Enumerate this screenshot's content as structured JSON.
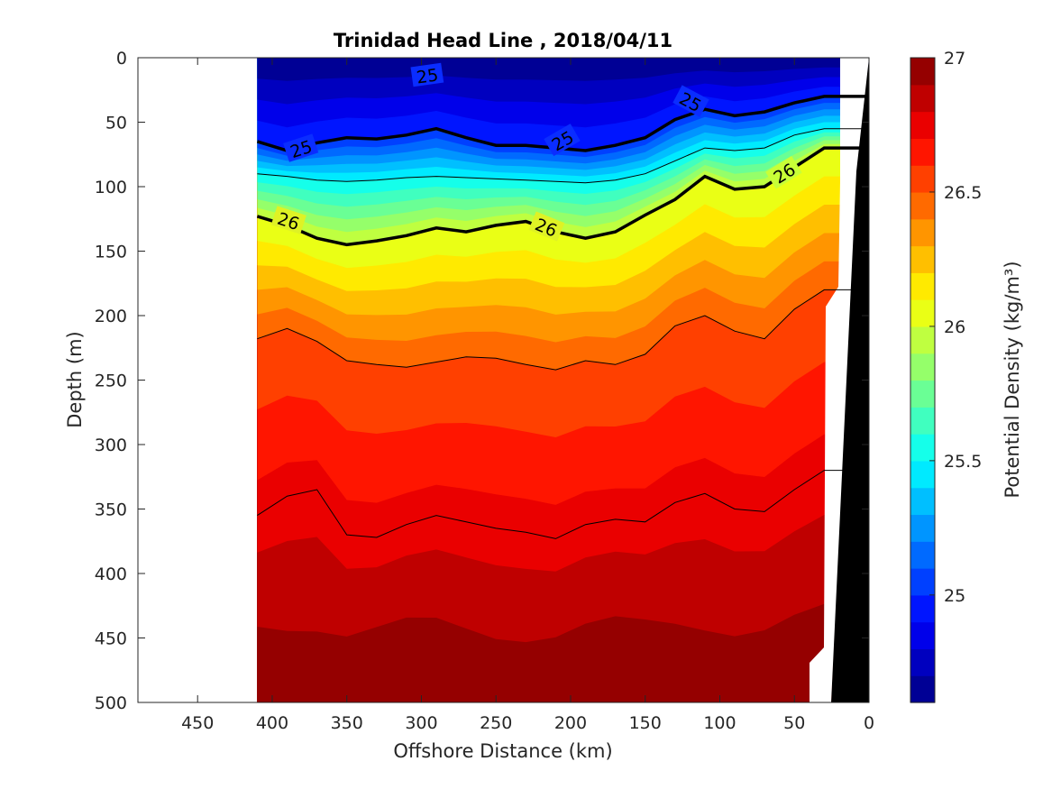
{
  "chart_data": {
    "type": "contour",
    "title": "Trinidad Head Line , 2018/04/11",
    "xlabel": "Offshore Distance (km)",
    "ylabel": "Depth (m)",
    "xlim": [
      490,
      0
    ],
    "ylim": [
      500,
      0
    ],
    "x_reversed": true,
    "y_reversed": true,
    "x_ticks": [
      "450",
      "400",
      "350",
      "300",
      "250",
      "200",
      "150",
      "100",
      "50",
      "0"
    ],
    "y_ticks": [
      "0",
      "50",
      "100",
      "150",
      "200",
      "250",
      "300",
      "350",
      "400",
      "450",
      "500"
    ],
    "colorbar": {
      "label": "Potential Density (kg/m³)",
      "range": [
        24.6,
        27.0
      ],
      "ticks": [
        "27",
        "26.5",
        "26",
        "25.5",
        "25"
      ],
      "colormap": "jet",
      "levels": 24
    },
    "contour_labels": [
      "25",
      "25",
      "25",
      "25",
      "26",
      "26",
      "26"
    ],
    "section_distance_km": [
      410,
      390,
      370,
      350,
      330,
      310,
      290,
      270,
      250,
      230,
      210,
      190,
      170,
      150,
      130,
      110,
      90,
      70,
      50,
      30
    ],
    "isopycnal_depths_m": [
      {
        "sigma": 25.0,
        "depth": [
          65,
          72,
          66,
          62,
          63,
          60,
          55,
          62,
          68,
          68,
          70,
          72,
          68,
          62,
          48,
          40,
          45,
          42,
          35,
          30
        ]
      },
      {
        "sigma": 25.5,
        "depth": [
          90,
          92,
          95,
          96,
          95,
          93,
          92,
          93,
          94,
          95,
          96,
          97,
          95,
          90,
          80,
          70,
          72,
          70,
          60,
          55
        ]
      },
      {
        "sigma": 26.0,
        "depth": [
          123,
          130,
          140,
          145,
          142,
          138,
          132,
          135,
          130,
          127,
          135,
          140,
          135,
          122,
          110,
          92,
          102,
          100,
          85,
          70
        ]
      },
      {
        "sigma": 26.5,
        "depth": [
          218,
          210,
          220,
          235,
          238,
          240,
          236,
          232,
          233,
          238,
          242,
          235,
          238,
          230,
          208,
          200,
          212,
          218,
          195,
          180
        ]
      },
      {
        "sigma": 26.75,
        "depth": [
          355,
          340,
          335,
          370,
          372,
          362,
          355,
          360,
          365,
          368,
          373,
          362,
          358,
          360,
          345,
          338,
          350,
          352,
          335,
          320
        ]
      }
    ]
  }
}
